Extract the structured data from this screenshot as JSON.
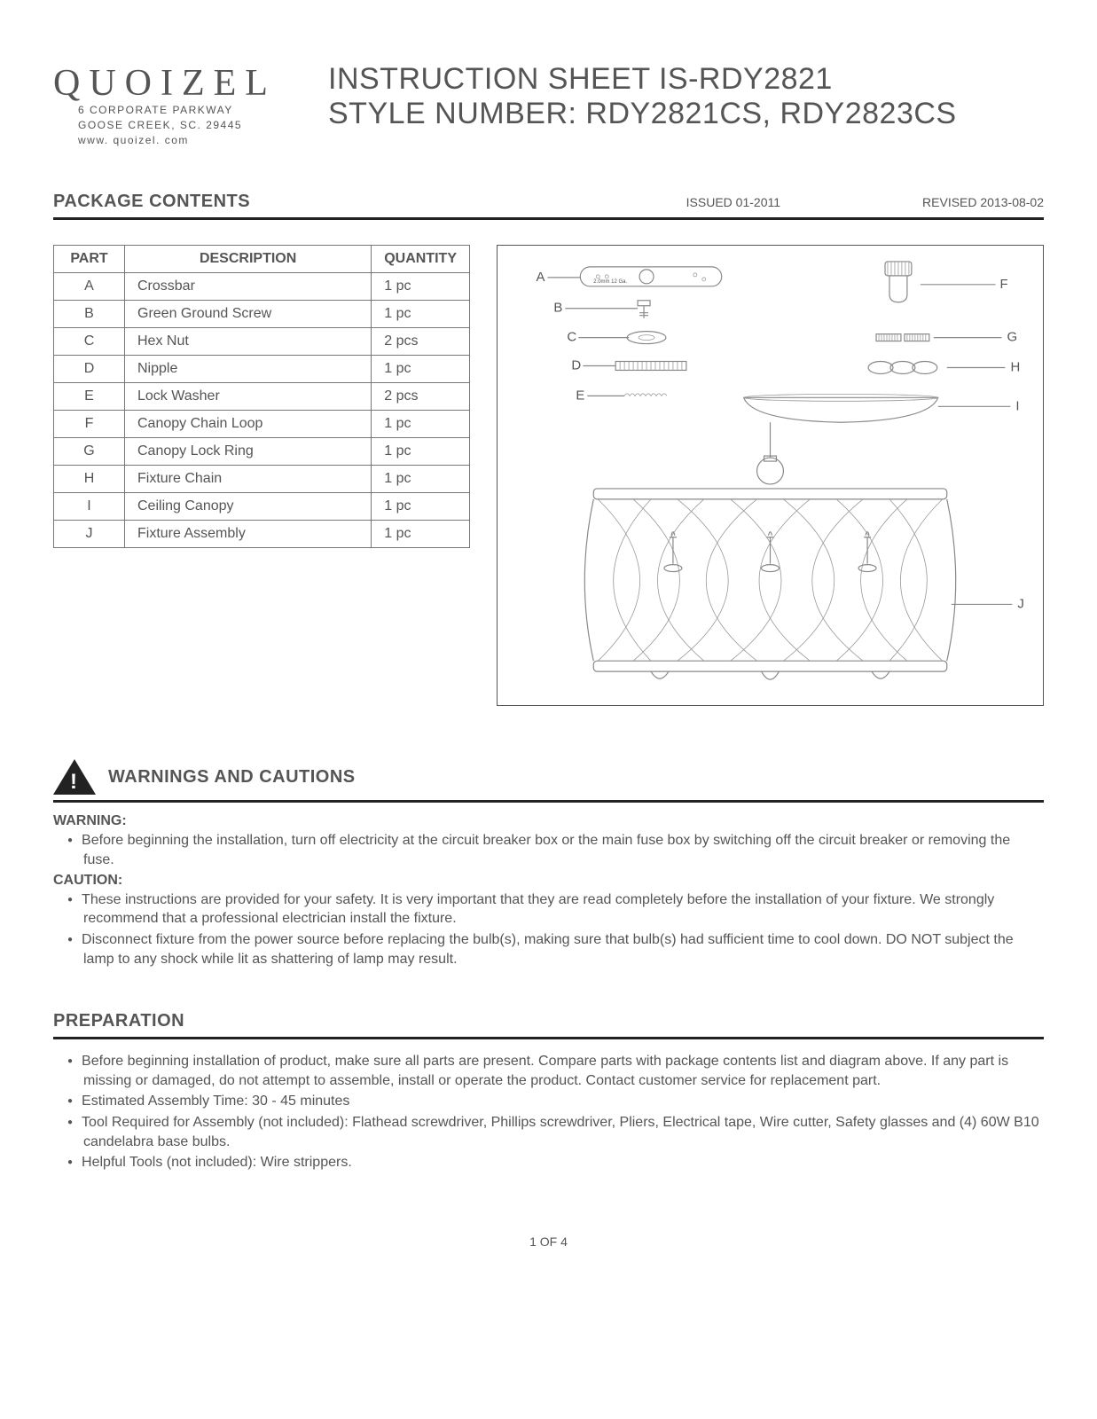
{
  "brand": {
    "name": "QUOIZEL",
    "address1": "6 CORPORATE PARKWAY",
    "address2": "GOOSE CREEK, SC. 29445",
    "website": "www. quoizel. com"
  },
  "title": {
    "line1": "INSTRUCTION SHEET IS-RDY2821",
    "line2_label": "STYLE NUMBER:",
    "line2_value": " RDY2821CS, RDY2823CS"
  },
  "sections": {
    "package_contents": "PACKAGE CONTENTS",
    "warnings": "WARNINGS AND CAUTIONS",
    "preparation": "PREPARATION"
  },
  "issued": "ISSUED 01-2011",
  "revised": "REVISED 2013-08-02",
  "parts_table": {
    "headers": {
      "part": "PART",
      "description": "DESCRIPTION",
      "quantity": "QUANTITY"
    },
    "rows": [
      {
        "part": "A",
        "desc": "Crossbar",
        "qty": "1 pc"
      },
      {
        "part": "B",
        "desc": "Green Ground Screw",
        "qty": "1 pc"
      },
      {
        "part": "C",
        "desc": "Hex Nut",
        "qty": "2 pcs"
      },
      {
        "part": "D",
        "desc": "Nipple",
        "qty": "1 pc"
      },
      {
        "part": "E",
        "desc": "Lock Washer",
        "qty": "2 pcs"
      },
      {
        "part": "F",
        "desc": "Canopy Chain Loop",
        "qty": "1 pc"
      },
      {
        "part": "G",
        "desc": "Canopy Lock Ring",
        "qty": "1 pc"
      },
      {
        "part": "H",
        "desc": "Fixture Chain",
        "qty": "1 pc"
      },
      {
        "part": "I",
        "desc": "Ceiling Canopy",
        "qty": "1 pc"
      },
      {
        "part": "J",
        "desc": "Fixture Assembly",
        "qty": "1 pc"
      }
    ]
  },
  "diagram_labels": {
    "A": "A",
    "B": "B",
    "C": "C",
    "D": "D",
    "E": "E",
    "F": "F",
    "G": "G",
    "H": "H",
    "I": "I",
    "J": "J"
  },
  "warning_label": "WARNING:",
  "warning_items": [
    "Before beginning the installation, turn off electricity at the circuit breaker box or the main fuse box by switching off the circuit breaker or removing the fuse."
  ],
  "caution_label": "CAUTION:",
  "caution_items": [
    "These instructions are provided for your safety. It is very important that they are read completely before the installation of your fixture. We strongly recommend that a professional electrician install the fixture.",
    "Disconnect fixture from the power source before replacing the bulb(s), making sure that bulb(s) had sufficient time to cool down. DO NOT subject the lamp to any shock while lit as shattering of lamp may result."
  ],
  "preparation_items": [
    "Before beginning installation of product, make sure all parts are present. Compare parts with package contents list and diagram above. If any part is missing or damaged, do not attempt to assemble, install or operate the product. Contact customer service for replacement part.",
    "Estimated Assembly Time: 30 - 45 minutes",
    "Tool Required for Assembly (not included): Flathead screwdriver, Phillips screwdriver, Pliers, Electrical tape, Wire cutter, Safety glasses and (4) 60W B10 candelabra base bulbs.",
    "Helpful Tools (not included): Wire strippers."
  ],
  "page_number": "1 OF 4",
  "colors": {
    "rule": "#222222",
    "text": "#555555",
    "border": "#777777"
  }
}
